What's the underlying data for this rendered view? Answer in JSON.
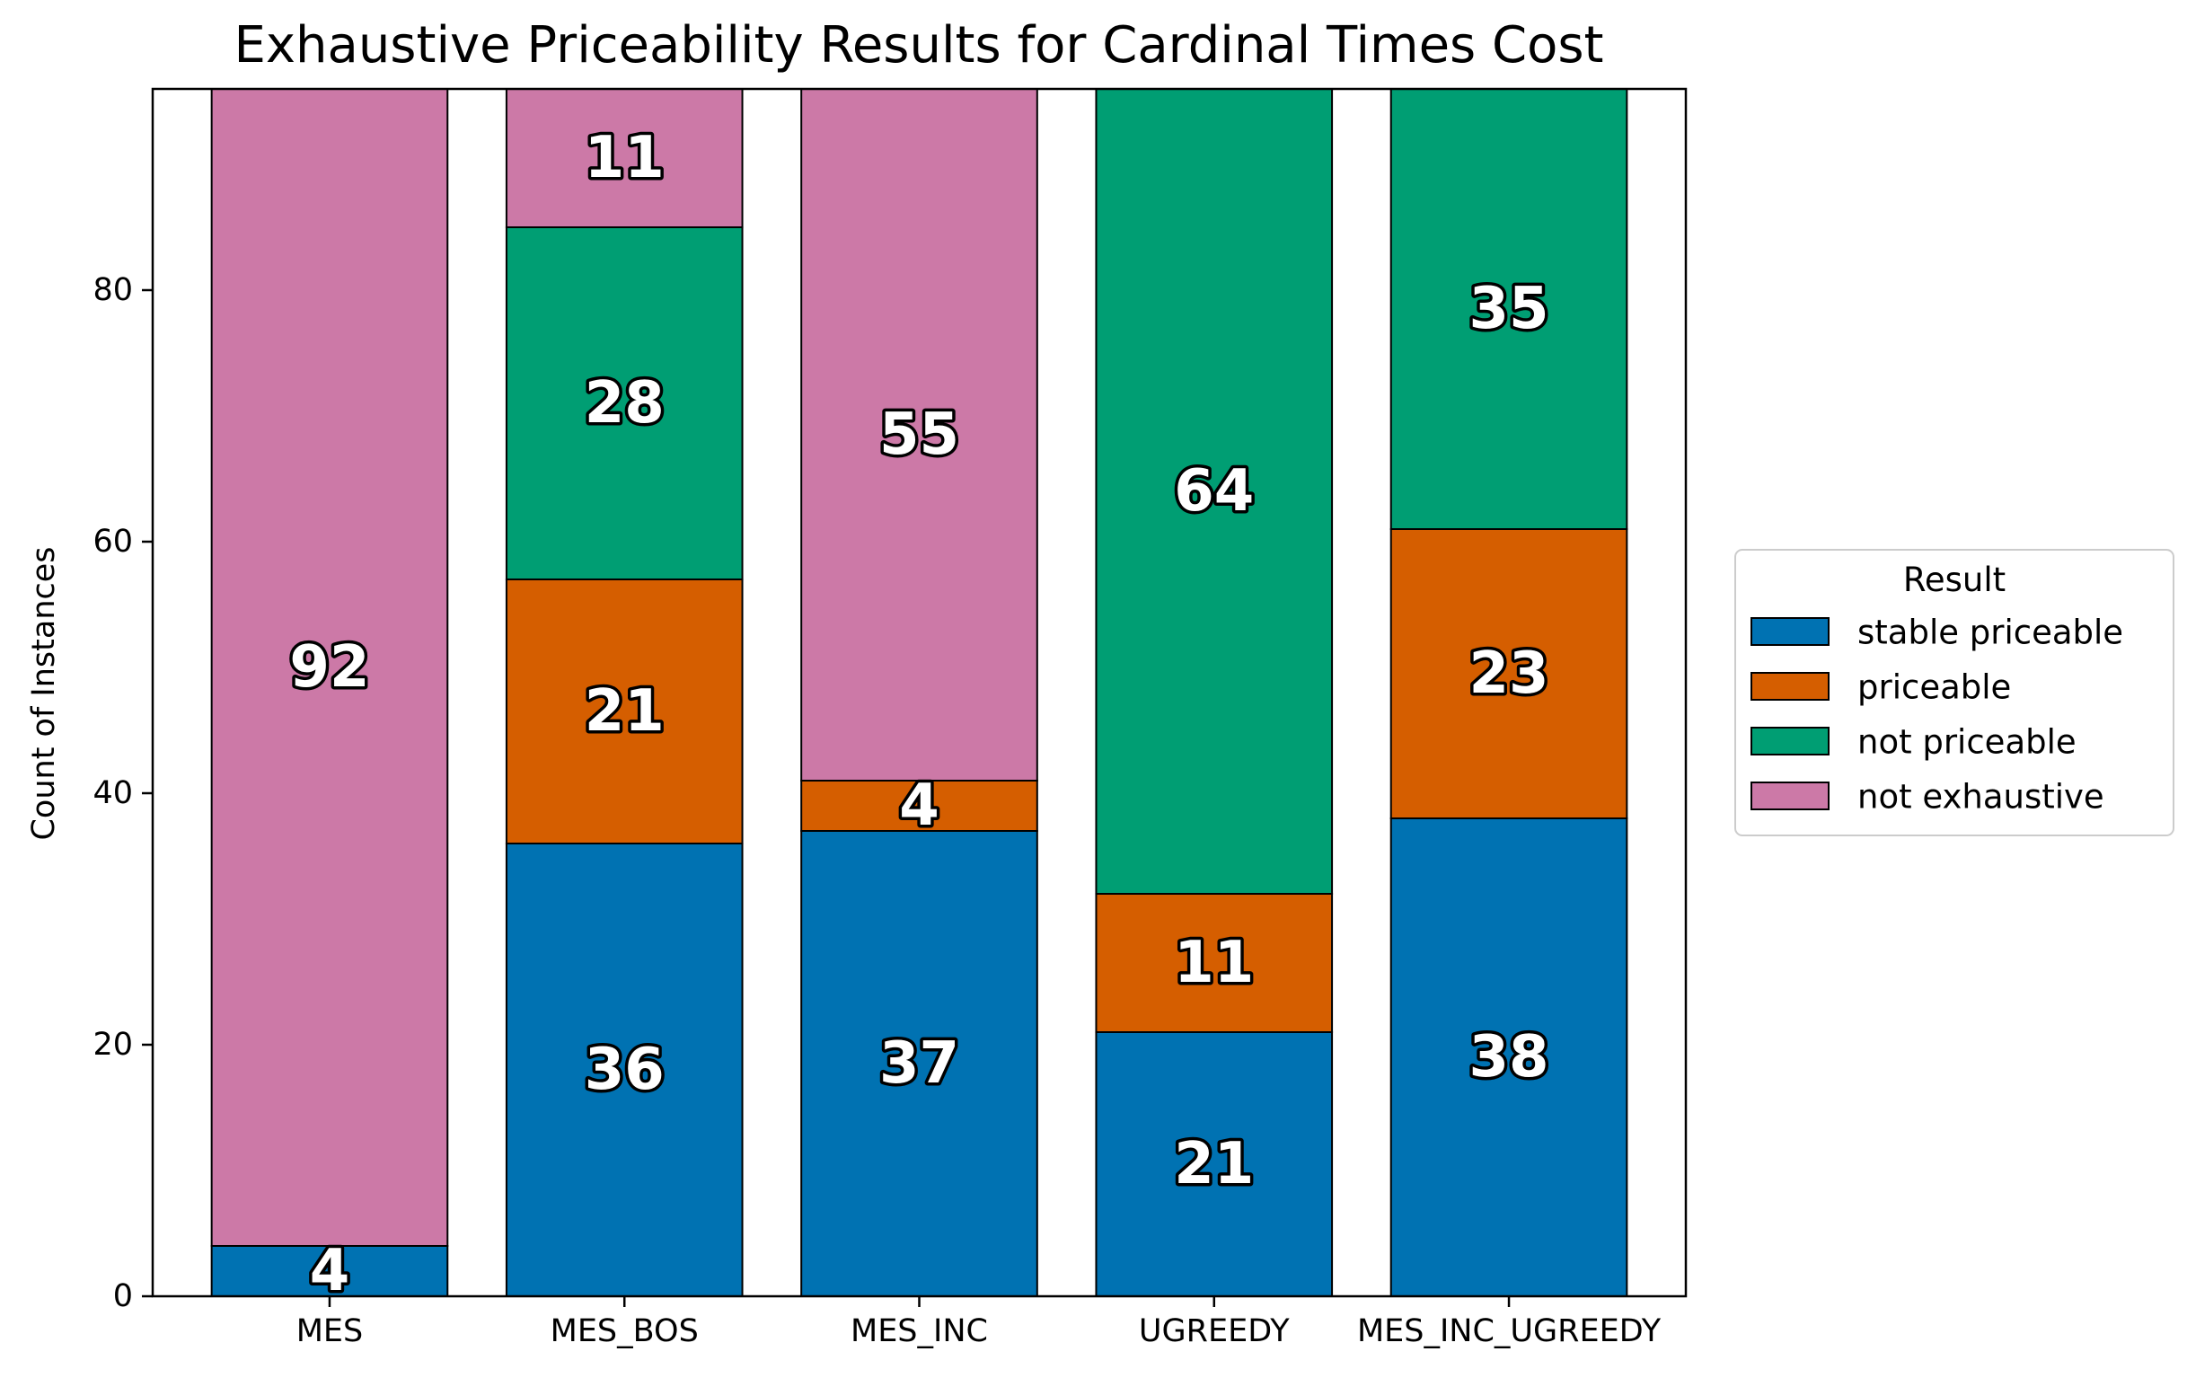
{
  "chart_data": {
    "type": "bar",
    "stacked": true,
    "title": "Exhaustive Priceability Results for Cardinal Times Cost",
    "xlabel": "",
    "ylabel": "Count of Instances",
    "ylim": [
      0,
      96
    ],
    "yticks": [
      0,
      20,
      40,
      60,
      80
    ],
    "categories": [
      "MES",
      "MES_BOS",
      "MES_INC",
      "UGREEDY",
      "MES_INC_UGREEDY"
    ],
    "series": [
      {
        "name": "stable priceable",
        "color": "#0072b2",
        "values": [
          4,
          36,
          37,
          21,
          38
        ]
      },
      {
        "name": "priceable",
        "color": "#d55e00",
        "values": [
          0,
          21,
          4,
          11,
          23
        ]
      },
      {
        "name": "not priceable",
        "color": "#009e73",
        "values": [
          0,
          28,
          0,
          64,
          35
        ]
      },
      {
        "name": "not exhaustive",
        "color": "#cc79a7",
        "values": [
          92,
          11,
          55,
          0,
          0
        ]
      }
    ],
    "legend": {
      "title": "Result",
      "placement": "center-right outside"
    },
    "grid": false
  }
}
